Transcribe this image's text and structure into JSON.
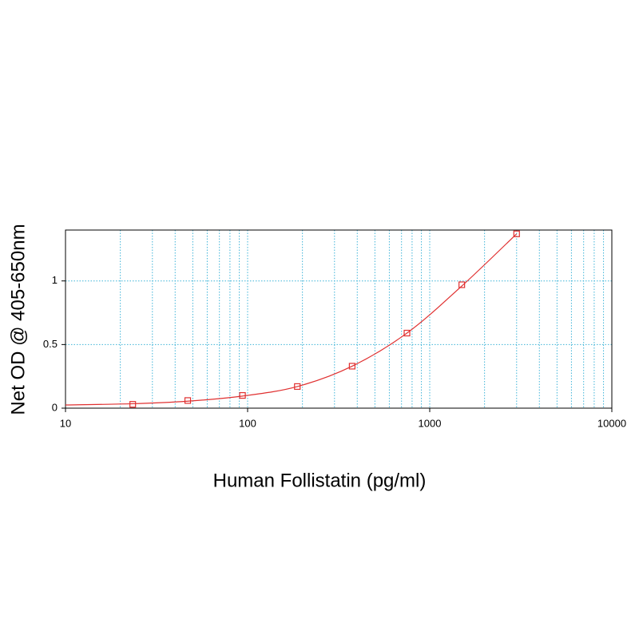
{
  "chart_data": {
    "type": "scatter",
    "x_label": "Human Follistatin (pg/ml)",
    "y_label": "Net OD @ 405-650nm",
    "log_x": true,
    "grid": true,
    "xlim": [
      10,
      10000
    ],
    "xticks": [
      10,
      100,
      1000,
      10000
    ],
    "xminorticks": [
      20,
      30,
      40,
      50,
      60,
      70,
      80,
      90,
      200,
      300,
      400,
      500,
      600,
      700,
      800,
      900,
      2000,
      3000,
      4000,
      5000,
      6000,
      7000,
      8000,
      9000
    ],
    "ylim": [
      0,
      1.4
    ],
    "yticks": [
      0,
      0.5,
      1
    ],
    "points": {
      "color": "#e03030",
      "x": [
        23.4,
        46.9,
        93.75,
        187.5,
        375,
        750,
        1500,
        3000
      ],
      "values": [
        0.03,
        0.06,
        0.1,
        0.17,
        0.33,
        0.59,
        0.97,
        1.37
      ]
    },
    "curve": {
      "color": "#e03030",
      "x": [
        10,
        23.4,
        46.9,
        93.75,
        187.5,
        375,
        750,
        1500,
        3000
      ],
      "values": [
        0.025,
        0.035,
        0.055,
        0.095,
        0.17,
        0.33,
        0.59,
        0.96,
        1.37
      ]
    }
  }
}
